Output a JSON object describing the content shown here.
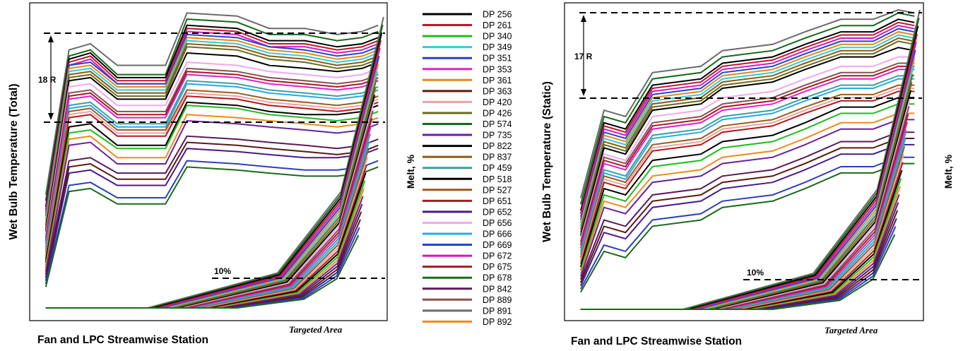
{
  "colors": {
    "DP 256": "#000000",
    "DP 261": "#c0152b",
    "DP 340": "#22bb22",
    "DP 349": "#2ccfd8",
    "DP 351": "#2c3fbf",
    "DP 353": "#e01fd0",
    "DP 361": "#e8861a",
    "DP 363": "#5a1a12",
    "DP 420": "#e8a4a4",
    "DP 426": "#6b6a1c",
    "DP 574": "#146a1a",
    "DP 735": "#6a1fa0",
    "DP 822": "#000000",
    "DP 837": "#8a5a14",
    "DP 459": "#3aa0a0",
    "DP 518": "#000000",
    "DP 527": "#9a5a1c",
    "DP 651": "#b01a1a",
    "DP 652": "#4a1a8a",
    "DP 656": "#f0a8f0",
    "DP 666": "#2aa8e0",
    "DP 669": "#2244cc",
    "DP 672": "#d019c0",
    "DP 675": "#a01a2a",
    "DP 678": "#1a6a1a",
    "DP 842": "#5a1a5a",
    "DP 889": "#8a5050",
    "DP 891": "#6a6a6a",
    "DP 892": "#ef8a1a"
  },
  "legend": {
    "entries": [
      "DP 256",
      "DP 261",
      "DP 340",
      "DP 349",
      "DP 351",
      "DP 353",
      "DP 361",
      "DP 363",
      "DP 420",
      "DP 426",
      "DP 574",
      "DP 735",
      "DP 822",
      "DP 837",
      "DP 459",
      "DP 518",
      "DP 527",
      "DP 651",
      "DP 652",
      "DP 656",
      "DP 666",
      "DP 669",
      "DP 672",
      "DP 675",
      "DP 678",
      "DP 842",
      "DP 889",
      "DP 891",
      "DP 892"
    ]
  },
  "chart_data": [
    {
      "type": "line",
      "xlabel": "Fan and LPC Streamwise Station",
      "ylabel": "Wet Bulb Temperature (Total)",
      "y2label": "Melt, %",
      "annotations": [
        "18 R",
        "10%",
        "Targeted Area"
      ],
      "temperature_series": [
        {
          "name": "DP 891",
          "values": [
            40,
            87,
            89,
            82,
            82,
            99,
            98,
            94,
            94,
            92,
            93,
            95
          ]
        },
        {
          "name": "DP 574",
          "values": [
            38,
            85,
            87,
            79,
            79,
            97,
            96,
            92,
            92,
            90,
            91,
            93
          ]
        },
        {
          "name": "DP 256",
          "values": [
            36,
            84,
            86,
            78,
            78,
            95,
            94,
            90,
            90,
            88,
            89,
            91
          ]
        },
        {
          "name": "DP 261",
          "values": [
            35,
            83,
            85,
            77,
            77,
            94,
            93,
            89,
            89,
            87,
            88,
            90
          ]
        },
        {
          "name": "DP 672",
          "values": [
            34,
            82,
            84,
            76,
            76,
            93,
            92,
            88,
            88,
            86,
            87,
            89
          ]
        },
        {
          "name": "DP 669",
          "values": [
            33,
            82,
            83,
            76,
            76,
            92,
            91,
            88,
            87,
            85,
            86,
            88
          ]
        },
        {
          "name": "DP 361",
          "values": [
            32,
            81,
            82,
            75,
            75,
            91,
            90,
            87,
            86,
            84,
            85,
            87
          ]
        },
        {
          "name": "DP 349",
          "values": [
            31,
            80,
            81,
            74,
            74,
            90,
            89,
            86,
            85,
            83,
            84,
            86
          ]
        },
        {
          "name": "DP 837",
          "values": [
            30,
            79,
            80,
            73,
            73,
            89,
            88,
            85,
            84,
            82,
            83,
            85
          ]
        },
        {
          "name": "DP 426",
          "values": [
            29,
            78,
            79,
            72,
            72,
            88,
            87,
            84,
            83,
            81,
            82,
            84
          ]
        },
        {
          "name": "DP 518",
          "values": [
            28,
            77,
            78,
            71,
            71,
            86,
            85,
            82,
            81,
            80,
            81,
            83
          ]
        },
        {
          "name": "DP 656",
          "values": [
            27,
            75,
            76,
            69,
            69,
            83,
            82,
            80,
            79,
            78,
            79,
            81
          ]
        },
        {
          "name": "DP 889",
          "values": [
            26,
            73,
            74,
            67,
            67,
            81,
            80,
            78,
            77,
            76,
            77,
            79
          ]
        },
        {
          "name": "DP 675",
          "values": [
            25,
            72,
            73,
            66,
            66,
            80,
            79,
            77,
            76,
            75,
            76,
            78
          ]
        },
        {
          "name": "DP 353",
          "values": [
            24,
            71,
            72,
            65,
            65,
            79,
            78,
            76,
            75,
            74,
            75,
            77
          ]
        },
        {
          "name": "DP 459",
          "values": [
            23,
            69,
            70,
            63,
            63,
            77,
            76,
            74,
            73,
            72,
            73,
            75
          ]
        },
        {
          "name": "DP 666",
          "values": [
            22,
            68,
            69,
            62,
            62,
            76,
            75,
            73,
            72,
            71,
            72,
            74
          ]
        },
        {
          "name": "DP 527",
          "values": [
            21,
            67,
            68,
            61,
            61,
            74,
            73,
            71,
            70,
            69,
            70,
            72
          ]
        },
        {
          "name": "DP 420",
          "values": [
            20,
            66,
            67,
            60,
            60,
            73,
            72,
            70,
            69,
            68,
            69,
            71
          ]
        },
        {
          "name": "DP 651",
          "values": [
            19,
            65,
            66,
            59,
            59,
            72,
            71,
            69,
            68,
            67,
            68,
            70
          ]
        },
        {
          "name": "DP 822",
          "values": [
            18,
            62,
            63,
            56,
            56,
            70,
            69,
            67,
            66,
            66,
            67,
            69
          ]
        },
        {
          "name": "DP 340",
          "values": [
            17,
            60,
            61,
            55,
            55,
            69,
            68,
            66,
            65,
            64,
            65,
            67
          ]
        },
        {
          "name": "DP 892",
          "values": [
            16,
            58,
            59,
            52,
            52,
            66,
            65,
            64,
            63,
            62,
            63,
            65
          ]
        },
        {
          "name": "DP 735",
          "values": [
            15,
            56,
            57,
            50,
            50,
            64,
            63,
            62,
            61,
            60,
            61,
            63
          ]
        },
        {
          "name": "DP 842",
          "values": [
            14,
            51,
            52,
            47,
            47,
            59,
            58,
            57,
            56,
            55,
            56,
            58
          ]
        },
        {
          "name": "DP 363",
          "values": [
            13,
            49,
            50,
            45,
            45,
            57,
            56,
            55,
            54,
            53,
            54,
            56
          ]
        },
        {
          "name": "DP 652",
          "values": [
            12,
            47,
            48,
            43,
            43,
            55,
            54,
            53,
            52,
            52,
            53,
            55
          ]
        },
        {
          "name": "DP 351",
          "values": [
            11,
            43,
            44,
            39,
            39,
            51,
            50,
            49,
            48,
            48,
            49,
            51
          ]
        },
        {
          "name": "DP 678",
          "values": [
            10,
            41,
            42,
            37,
            37,
            49,
            48,
            47,
            46,
            46,
            47,
            49
          ]
        }
      ]
    },
    {
      "type": "line",
      "xlabel": "Fan and LPC Streamwise Station",
      "ylabel": "Wet Bulb Temperature (Static)",
      "y2label": "Melt, %",
      "annotations": [
        "17 R",
        "10%",
        "Targeted Area"
      ],
      "temperature_series": [
        {
          "name": "DP 891",
          "values": [
            40,
            68,
            66,
            80,
            82,
            87,
            89,
            93,
            97,
            97,
            100,
            99
          ]
        },
        {
          "name": "DP 574",
          "values": [
            38,
            66,
            64,
            78,
            80,
            85,
            87,
            91,
            95,
            95,
            99,
            98
          ]
        },
        {
          "name": "DP 256",
          "values": [
            36,
            64,
            62,
            76,
            78,
            83,
            85,
            89,
            93,
            93,
            97,
            96
          ]
        },
        {
          "name": "DP 261",
          "values": [
            35,
            63,
            61,
            75,
            77,
            82,
            84,
            88,
            92,
            92,
            96,
            95
          ]
        },
        {
          "name": "DP 672",
          "values": [
            34,
            62,
            60,
            74,
            76,
            81,
            83,
            87,
            91,
            91,
            95,
            94
          ]
        },
        {
          "name": "DP 669",
          "values": [
            33,
            61,
            59,
            73,
            75,
            80,
            82,
            86,
            90,
            90,
            94,
            93
          ]
        },
        {
          "name": "DP 361",
          "values": [
            32,
            60,
            58,
            72,
            74,
            79,
            81,
            85,
            89,
            89,
            93,
            92
          ]
        },
        {
          "name": "DP 349",
          "values": [
            31,
            59,
            57,
            71,
            73,
            78,
            80,
            84,
            88,
            88,
            92,
            91
          ]
        },
        {
          "name": "DP 837",
          "values": [
            30,
            58,
            56,
            70,
            72,
            77,
            79,
            83,
            87,
            87,
            91,
            90
          ]
        },
        {
          "name": "DP 426",
          "values": [
            29,
            57,
            55,
            69,
            71,
            76,
            78,
            82,
            86,
            86,
            90,
            89
          ]
        },
        {
          "name": "DP 518",
          "values": [
            28,
            56,
            54,
            68,
            70,
            75,
            77,
            81,
            85,
            85,
            88,
            87
          ]
        },
        {
          "name": "DP 656",
          "values": [
            27,
            54,
            52,
            66,
            68,
            72,
            74,
            78,
            82,
            82,
            85,
            85
          ]
        },
        {
          "name": "DP 889",
          "values": [
            26,
            53,
            51,
            64,
            66,
            70,
            72,
            76,
            80,
            80,
            83,
            83
          ]
        },
        {
          "name": "DP 675",
          "values": [
            25,
            52,
            50,
            63,
            65,
            69,
            71,
            75,
            79,
            79,
            82,
            82
          ]
        },
        {
          "name": "DP 353",
          "values": [
            24,
            51,
            49,
            62,
            64,
            68,
            70,
            74,
            78,
            78,
            81,
            81
          ]
        },
        {
          "name": "DP 459",
          "values": [
            23,
            49,
            47,
            60,
            62,
            66,
            68,
            72,
            76,
            76,
            79,
            79
          ]
        },
        {
          "name": "DP 666",
          "values": [
            22,
            48,
            46,
            59,
            61,
            65,
            67,
            71,
            75,
            75,
            78,
            78
          ]
        },
        {
          "name": "DP 527",
          "values": [
            21,
            47,
            45,
            57,
            59,
            63,
            65,
            69,
            73,
            73,
            76,
            76
          ]
        },
        {
          "name": "DP 420",
          "values": [
            20,
            46,
            44,
            56,
            58,
            62,
            64,
            68,
            72,
            72,
            75,
            75
          ]
        },
        {
          "name": "DP 651",
          "values": [
            19,
            45,
            43,
            55,
            57,
            61,
            63,
            67,
            71,
            71,
            74,
            74
          ]
        },
        {
          "name": "DP 822",
          "values": [
            18,
            43,
            41,
            52,
            54,
            58,
            60,
            64,
            69,
            69,
            72,
            72
          ]
        },
        {
          "name": "DP 340",
          "values": [
            17,
            41,
            39,
            50,
            52,
            56,
            58,
            62,
            67,
            67,
            70,
            70
          ]
        },
        {
          "name": "DP 892",
          "values": [
            16,
            39,
            37,
            47,
            49,
            53,
            55,
            59,
            64,
            64,
            67,
            67
          ]
        },
        {
          "name": "DP 735",
          "values": [
            15,
            37,
            35,
            45,
            47,
            51,
            53,
            57,
            62,
            62,
            65,
            65
          ]
        },
        {
          "name": "DP 842",
          "values": [
            14,
            33,
            31,
            41,
            43,
            47,
            49,
            53,
            58,
            58,
            61,
            61
          ]
        },
        {
          "name": "DP 363",
          "values": [
            13,
            31,
            29,
            39,
            41,
            45,
            47,
            51,
            56,
            56,
            59,
            59
          ]
        },
        {
          "name": "DP 652",
          "values": [
            12,
            29,
            27,
            37,
            39,
            43,
            45,
            49,
            54,
            54,
            57,
            57
          ]
        },
        {
          "name": "DP 351",
          "values": [
            11,
            25,
            23,
            33,
            35,
            39,
            41,
            45,
            50,
            50,
            53,
            53
          ]
        },
        {
          "name": "DP 678",
          "values": [
            10,
            23,
            21,
            31,
            33,
            37,
            39,
            43,
            48,
            48,
            51,
            51
          ]
        }
      ]
    }
  ]
}
